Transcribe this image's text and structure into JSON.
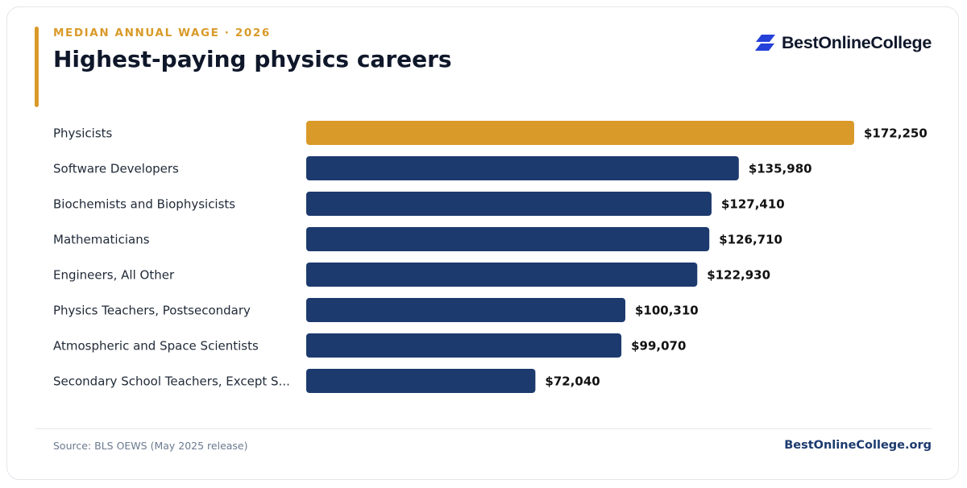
{
  "header": {
    "eyebrow": "MEDIAN ANNUAL WAGE · 2026",
    "title": "Highest-paying physics careers"
  },
  "brand": {
    "name": "BestOnlineCollege",
    "icon": "brand-logo-icon",
    "icon_color": "#2541d9"
  },
  "colors": {
    "highlight": "#d99a29",
    "bar": "#1c3a6e",
    "label": "#1f2937",
    "value": "#111111"
  },
  "chart_data": {
    "type": "bar",
    "orientation": "horizontal",
    "title": "Highest-paying physics careers",
    "subtitle": "MEDIAN ANNUAL WAGE · 2026",
    "categories": [
      "Physicists",
      "Software Developers",
      "Biochemists and Biophysicists",
      "Mathematicians",
      "Engineers, All Other",
      "Physics Teachers, Postsecondary",
      "Atmospheric and Space Scientists",
      "Secondary School Teachers, Except S..."
    ],
    "values": [
      172250,
      135980,
      127410,
      126710,
      122930,
      100310,
      99070,
      72040
    ],
    "value_labels": [
      "$172,250",
      "$135,980",
      "$127,410",
      "$126,710",
      "$122,930",
      "$100,310",
      "$99,070",
      "$72,040"
    ],
    "highlight_index": 0,
    "xlim": [
      0,
      172250
    ],
    "grid": false,
    "legend": "none"
  },
  "footer": {
    "source": "Source: BLS OEWS (May 2025 release)",
    "site": "BestOnlineCollege.org"
  }
}
